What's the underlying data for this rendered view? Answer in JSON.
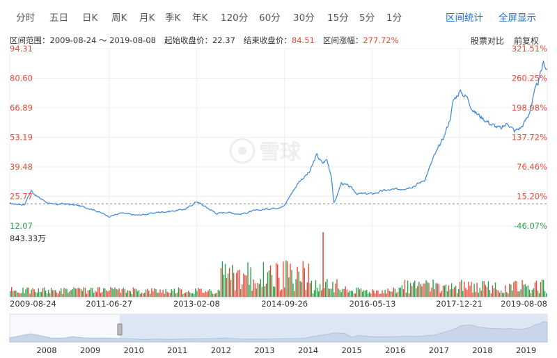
{
  "tabs": [
    "分时",
    "五日",
    "日K",
    "周K",
    "月K",
    "季K",
    "年K",
    "120分",
    "60分",
    "30分",
    "15分",
    "5分",
    "1分"
  ],
  "actions": {
    "range_stats": "区间统计",
    "fullscreen": "全屏显示"
  },
  "info": {
    "range_label": "区间范围：",
    "range_value": "2009-08-24 ～ 2019-08-08",
    "start_label": "起始收盘价：",
    "start_value": "22.37",
    "end_label": "结束收盘价：",
    "end_value": "84.51",
    "change_label": "区间涨幅：",
    "change_value": "277.72%"
  },
  "options": {
    "compare": "股票对比",
    "adjust": "前复权"
  },
  "watermark": "雪球",
  "colors": {
    "line": "#3a86d6",
    "up": "#e84b3a",
    "down": "#2e9f4d",
    "accent": "#1b6fd8",
    "nav_fill": "#dde6f3"
  },
  "chart_data": {
    "type": "line",
    "x_start": "2009-08-24",
    "x_end": "2019-08-08",
    "x_ticks": [
      "2009-08-24",
      "2011-06-27",
      "2013-02-08",
      "2014-09-26",
      "2016-05-13",
      "2017-12-21",
      "2019-08-08"
    ],
    "y_ticks_price": [
      "94.31",
      "80.60",
      "66.89",
      "53.19",
      "39.48",
      "25.77",
      "12.07"
    ],
    "y_ticks_percent": [
      "321.51%",
      "260.25%",
      "198.98%",
      "137.72%",
      "76.46%",
      "15.20%",
      "-46.07%"
    ],
    "ylim": [
      12.07,
      94.31
    ],
    "baseline": 22.37,
    "series": [
      {
        "x": [
          "2009-08-24",
          "2009-12-01",
          "2010-01-15",
          "2010-03-01",
          "2010-06-01",
          "2010-09-01",
          "2010-12-01",
          "2011-03-01",
          "2011-06-27",
          "2011-09-15",
          "2011-12-30",
          "2012-03-01",
          "2012-06-01",
          "2012-09-01",
          "2012-12-01",
          "2013-02-08",
          "2013-03-15",
          "2013-06-25",
          "2013-09-01",
          "2013-12-01",
          "2014-03-01",
          "2014-06-01",
          "2014-08-01",
          "2014-09-26",
          "2014-11-01",
          "2015-01-05",
          "2015-03-15",
          "2015-05-01",
          "2015-06-10",
          "2015-07-08",
          "2015-08-10",
          "2015-08-26",
          "2015-10-15",
          "2015-12-15",
          "2016-02-01",
          "2016-05-13",
          "2016-08-01",
          "2016-11-01",
          "2017-01-10",
          "2017-03-01",
          "2017-05-01",
          "2017-07-01",
          "2017-09-01",
          "2017-10-20",
          "2017-11-10",
          "2017-12-21",
          "2018-02-10",
          "2018-04-01",
          "2018-06-01",
          "2018-08-01",
          "2018-10-01",
          "2018-11-15",
          "2018-12-28",
          "2019-02-15",
          "2019-04-01",
          "2019-05-15",
          "2019-06-15",
          "2019-07-15",
          "2019-08-08"
        ],
        "values": [
          22.37,
          22.0,
          28.5,
          25.5,
          22.0,
          22.3,
          21.5,
          20.0,
          16.5,
          18.0,
          17.0,
          17.5,
          18.5,
          19.0,
          20.0,
          23.5,
          22.0,
          17.8,
          18.5,
          17.5,
          19.0,
          20.0,
          20.5,
          21.5,
          26.0,
          33.0,
          37.0,
          45.0,
          41.0,
          43.0,
          35.0,
          22.0,
          32.0,
          30.0,
          27.0,
          27.0,
          28.5,
          29.0,
          30.0,
          31.0,
          33.5,
          44.0,
          52.0,
          62.0,
          70.0,
          74.5,
          72.0,
          65.0,
          62.0,
          59.0,
          57.0,
          60.0,
          56.0,
          58.0,
          63.0,
          74.0,
          80.0,
          88.0,
          84.51
        ]
      }
    ]
  }
}
